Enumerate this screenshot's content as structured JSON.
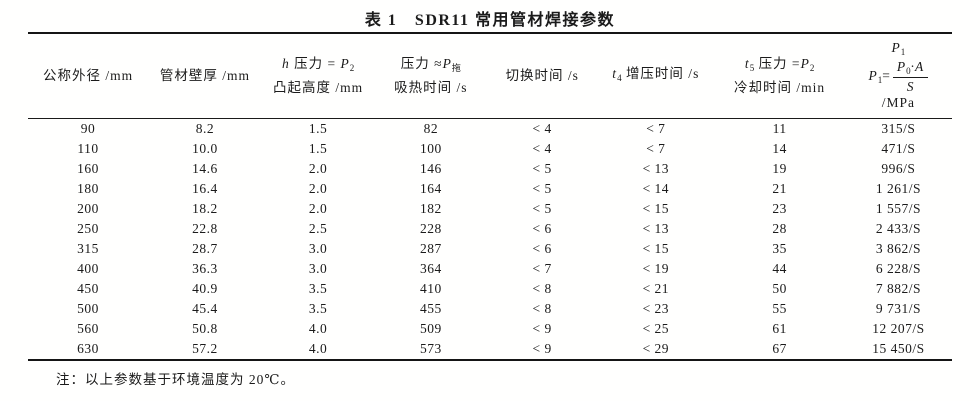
{
  "title": "表 1　SDR11 常用管材焊接参数",
  "table": {
    "headers": {
      "col1": "公称外径 /mm",
      "col2": "管材壁厚 /mm",
      "col3": {
        "var": "h",
        "text": " 压力 = ",
        "p": "P",
        "psub": "2",
        "line2": "凸起高度 /mm"
      },
      "col4": {
        "text": "压力 ≈",
        "p": "P",
        "psub": "拖",
        "line2": "吸热时间 /s"
      },
      "col5": "切换时间 /s",
      "col6": {
        "var": "t",
        "vsub": "4",
        "text": " 增压时间 /s"
      },
      "col7": {
        "var": "t",
        "vsub": "5",
        "text": " 压力 =",
        "p": "P",
        "psub": "2",
        "line2": "冷却时间 /min"
      },
      "col8": {
        "P": "P",
        "sub1": "1",
        "eq": "=",
        "numP": "P",
        "sub0": "0",
        "numRest": "·A",
        "den": "S",
        "unit": "/MPa"
      }
    },
    "rows": [
      [
        "90",
        "8.2",
        "1.5",
        "82",
        "< 4",
        "< 7",
        "11",
        "315/S"
      ],
      [
        "110",
        "10.0",
        "1.5",
        "100",
        "< 4",
        "< 7",
        "14",
        "471/S"
      ],
      [
        "160",
        "14.6",
        "2.0",
        "146",
        "< 5",
        "< 13",
        "19",
        "996/S"
      ],
      [
        "180",
        "16.4",
        "2.0",
        "164",
        "< 5",
        "< 14",
        "21",
        "1 261/S"
      ],
      [
        "200",
        "18.2",
        "2.0",
        "182",
        "< 5",
        "< 15",
        "23",
        "1 557/S"
      ],
      [
        "250",
        "22.8",
        "2.5",
        "228",
        "< 6",
        "< 13",
        "28",
        "2 433/S"
      ],
      [
        "315",
        "28.7",
        "3.0",
        "287",
        "< 6",
        "< 15",
        "35",
        "3 862/S"
      ],
      [
        "400",
        "36.3",
        "3.0",
        "364",
        "< 7",
        "< 19",
        "44",
        "6 228/S"
      ],
      [
        "450",
        "40.9",
        "3.5",
        "410",
        "< 8",
        "< 21",
        "50",
        "7 882/S"
      ],
      [
        "500",
        "45.4",
        "3.5",
        "455",
        "< 8",
        "< 23",
        "55",
        "9 731/S"
      ],
      [
        "560",
        "50.8",
        "4.0",
        "509",
        "< 9",
        "< 25",
        "61",
        "12 207/S"
      ],
      [
        "630",
        "57.2",
        "4.0",
        "573",
        "< 9",
        "< 29",
        "67",
        "15 450/S"
      ]
    ]
  },
  "note": "注：以上参数基于环境温度为 20℃。",
  "colors": {
    "text": "#1b1b1b",
    "rule": "#151515",
    "background": "#ffffff"
  }
}
